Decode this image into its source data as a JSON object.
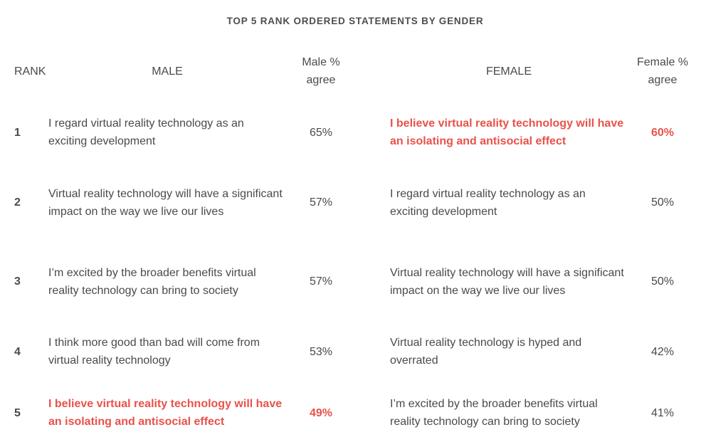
{
  "title": "TOP 5 RANK ORDERED STATEMENTS BY GENDER",
  "headers": {
    "rank": "RANK",
    "male": "MALE",
    "male_pct": "Male % agree",
    "female": "FEMALE",
    "female_pct": "Female % agree"
  },
  "highlight_color": "#e8524a",
  "rows": [
    {
      "rank": "1",
      "male_statement": "I regard virtual reality technology as an exciting development",
      "male_pct": "65%",
      "male_highlight": false,
      "female_statement": "I believe virtual reality technology will have an isolating and antisocial effect",
      "female_pct": "60%",
      "female_highlight": true
    },
    {
      "rank": "2",
      "male_statement": "Virtual reality technology will have a significant impact on the way we live our lives",
      "male_pct": "57%",
      "male_highlight": false,
      "female_statement": "I regard virtual reality technology as an exciting development",
      "female_pct": "50%",
      "female_highlight": false
    },
    {
      "rank": "3",
      "male_statement": "I’m excited by the broader benefits virtual reality technology can bring to society",
      "male_pct": "57%",
      "male_highlight": false,
      "female_statement": "Virtual reality technology will have a significant impact on the way we live our lives",
      "female_pct": "50%",
      "female_highlight": false
    },
    {
      "rank": "4",
      "male_statement": "I think more good than bad will come from virtual reality technology",
      "male_pct": "53%",
      "male_highlight": false,
      "female_statement": "Virtual reality technology is hyped and overrated",
      "female_pct": "42%",
      "female_highlight": false
    },
    {
      "rank": "5",
      "male_statement": "I believe virtual reality technology will have an isolating and antisocial effect",
      "male_pct": "49%",
      "male_highlight": true,
      "female_statement": "I’m excited by the broader benefits virtual reality technology can bring to society",
      "female_pct": "41%",
      "female_highlight": false
    }
  ]
}
